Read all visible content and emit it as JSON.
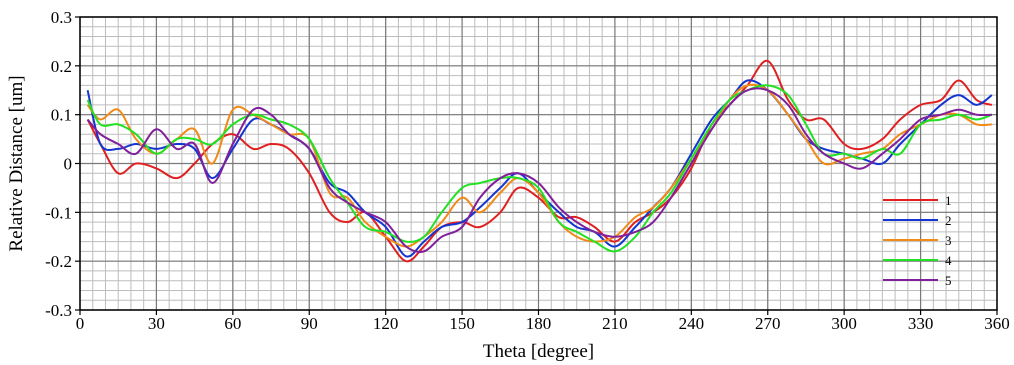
{
  "chart_data": {
    "type": "line",
    "title": "",
    "xlabel": "Theta [degree]",
    "ylabel": "Relative Distance [um]",
    "xlim": [
      0,
      360
    ],
    "ylim": [
      -0.3,
      0.3
    ],
    "x_ticks": [
      0,
      30,
      60,
      90,
      120,
      150,
      180,
      210,
      240,
      270,
      300,
      330,
      360
    ],
    "x_tick_labels": [
      "0",
      "30",
      "60",
      "90",
      "120",
      "150",
      "180",
      "210",
      "240",
      "270",
      "300",
      "330",
      "360"
    ],
    "y_ticks": [
      -0.3,
      -0.2,
      -0.1,
      0,
      0.1,
      0.2,
      0.3
    ],
    "y_tick_labels": [
      "-0.3",
      "-0.2",
      "-0.1",
      "0",
      "0.1",
      "0.2",
      "0.3"
    ],
    "minor_x_step": 5,
    "minor_y_step": 0.02,
    "grid": true,
    "legend_position": "bottom-right",
    "x": [
      3,
      8,
      15,
      22,
      30,
      38,
      45,
      52,
      60,
      68,
      75,
      82,
      90,
      98,
      105,
      112,
      120,
      128,
      135,
      142,
      150,
      157,
      165,
      172,
      180,
      188,
      195,
      202,
      210,
      218,
      225,
      232,
      240,
      248,
      255,
      262,
      270,
      278,
      285,
      292,
      300,
      307,
      315,
      322,
      330,
      338,
      345,
      352,
      358
    ],
    "series": [
      {
        "name": "1",
        "color": "#e02020",
        "values": [
          0.09,
          0.04,
          -0.02,
          0.0,
          -0.01,
          -0.03,
          0.0,
          0.04,
          0.06,
          0.03,
          0.04,
          0.03,
          -0.02,
          -0.1,
          -0.12,
          -0.1,
          -0.15,
          -0.2,
          -0.17,
          -0.13,
          -0.12,
          -0.13,
          -0.1,
          -0.05,
          -0.07,
          -0.11,
          -0.11,
          -0.13,
          -0.16,
          -0.12,
          -0.1,
          -0.07,
          -0.01,
          0.08,
          0.12,
          0.16,
          0.21,
          0.13,
          0.09,
          0.09,
          0.04,
          0.03,
          0.05,
          0.09,
          0.12,
          0.13,
          0.17,
          0.13,
          0.12
        ]
      },
      {
        "name": "2",
        "color": "#1535d0",
        "values": [
          0.15,
          0.04,
          0.03,
          0.04,
          0.03,
          0.04,
          0.03,
          -0.03,
          0.03,
          0.09,
          0.08,
          0.06,
          0.03,
          -0.04,
          -0.06,
          -0.1,
          -0.13,
          -0.19,
          -0.16,
          -0.13,
          -0.12,
          -0.09,
          -0.05,
          -0.02,
          -0.06,
          -0.1,
          -0.13,
          -0.14,
          -0.17,
          -0.13,
          -0.09,
          -0.05,
          0.02,
          0.09,
          0.13,
          0.17,
          0.15,
          0.1,
          0.05,
          0.03,
          0.02,
          0.01,
          0.0,
          0.04,
          0.08,
          0.12,
          0.14,
          0.12,
          0.14
        ]
      },
      {
        "name": "3",
        "color": "#f08a18",
        "values": [
          0.12,
          0.09,
          0.11,
          0.05,
          0.02,
          0.05,
          0.07,
          0.0,
          0.11,
          0.1,
          0.08,
          0.06,
          0.05,
          -0.06,
          -0.07,
          -0.12,
          -0.15,
          -0.17,
          -0.15,
          -0.12,
          -0.07,
          -0.1,
          -0.06,
          -0.03,
          -0.06,
          -0.12,
          -0.15,
          -0.16,
          -0.15,
          -0.11,
          -0.09,
          -0.05,
          0.01,
          0.07,
          0.13,
          0.16,
          0.15,
          0.1,
          0.05,
          0.0,
          0.01,
          0.02,
          0.03,
          0.06,
          0.08,
          0.1,
          0.1,
          0.08,
          0.08
        ]
      },
      {
        "name": "4",
        "color": "#22e022",
        "values": [
          0.13,
          0.08,
          0.08,
          0.06,
          0.02,
          0.05,
          0.05,
          0.04,
          0.08,
          0.1,
          0.09,
          0.08,
          0.05,
          -0.03,
          -0.08,
          -0.13,
          -0.14,
          -0.16,
          -0.15,
          -0.1,
          -0.05,
          -0.04,
          -0.03,
          -0.03,
          -0.05,
          -0.12,
          -0.14,
          -0.16,
          -0.18,
          -0.15,
          -0.1,
          -0.06,
          0.01,
          0.08,
          0.13,
          0.15,
          0.16,
          0.14,
          0.08,
          0.02,
          0.02,
          0.01,
          0.03,
          0.02,
          0.08,
          0.09,
          0.1,
          0.09,
          0.1
        ]
      },
      {
        "name": "5",
        "color": "#80209a",
        "values": [
          0.09,
          0.06,
          0.04,
          0.02,
          0.07,
          0.03,
          0.04,
          -0.04,
          0.04,
          0.11,
          0.1,
          0.06,
          0.03,
          -0.05,
          -0.08,
          -0.1,
          -0.12,
          -0.17,
          -0.18,
          -0.15,
          -0.13,
          -0.07,
          -0.03,
          -0.02,
          -0.04,
          -0.09,
          -0.12,
          -0.14,
          -0.15,
          -0.14,
          -0.12,
          -0.07,
          0.0,
          0.07,
          0.12,
          0.15,
          0.15,
          0.12,
          0.06,
          0.02,
          0.0,
          -0.01,
          0.02,
          0.05,
          0.09,
          0.1,
          0.11,
          0.1,
          0.1
        ]
      }
    ]
  }
}
